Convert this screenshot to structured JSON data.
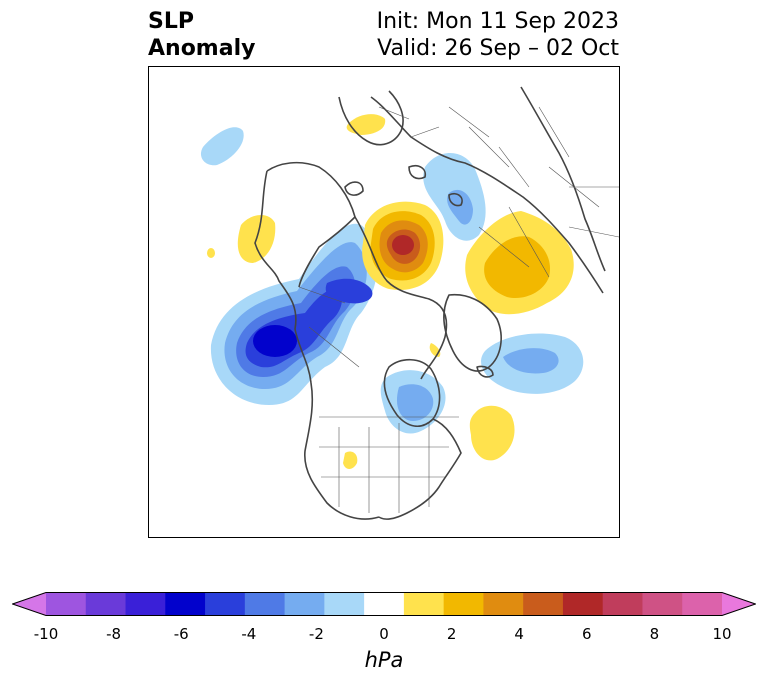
{
  "title": {
    "left_line1": "SLP",
    "left_line2": "Anomaly",
    "right_line1": "Init: Mon 11 Sep 2023",
    "right_line2": "Valid: 26 Sep – 02 Oct"
  },
  "colorbar": {
    "units": "hPa",
    "levels": [
      -10,
      -9,
      -8,
      -7,
      -6,
      -5,
      -4,
      -3,
      -2,
      -1,
      1,
      2,
      3,
      4,
      5,
      6,
      7,
      8,
      9,
      10
    ],
    "tick_labels": [
      "-10",
      "-8",
      "-6",
      "-4",
      "-2",
      "0",
      "2",
      "4",
      "6",
      "8",
      "10"
    ],
    "extend": "both",
    "colors": [
      "#d576e8",
      "#9e55e0",
      "#6a3ad9",
      "#3a20d8",
      "#0202cc",
      "#2a3fdb",
      "#4f7ae6",
      "#75acf0",
      "#a8d8f8",
      "#ffffff",
      "#ffe24d",
      "#f2b800",
      "#e08c10",
      "#c95c1c",
      "#b02828",
      "#c03d5c",
      "#cf5285",
      "#dc62ab",
      "#e978dd"
    ]
  },
  "map": {
    "projection": "polar stereographic (North America / Arctic)",
    "anomalies": [
      {
        "name": "positive-anomaly-central-arctic",
        "sign": "positive",
        "peak_hpa": 6
      },
      {
        "name": "positive-anomaly-siberia",
        "sign": "positive",
        "peak_hpa": 3
      },
      {
        "name": "positive-anomaly-north-atlantic",
        "sign": "positive",
        "peak_hpa": 1
      },
      {
        "name": "positive-anomaly-scandinavia",
        "sign": "positive",
        "peak_hpa": 1
      },
      {
        "name": "negative-anomaly-gulf-of-alaska",
        "sign": "negative",
        "peak_hpa": -6
      },
      {
        "name": "negative-anomaly-hudson-bay",
        "sign": "negative",
        "peak_hpa": -2
      },
      {
        "name": "negative-anomaly-greenland-sea",
        "sign": "negative",
        "peak_hpa": -2
      },
      {
        "name": "negative-anomaly-kara-sea",
        "sign": "negative",
        "peak_hpa": -1
      }
    ]
  }
}
